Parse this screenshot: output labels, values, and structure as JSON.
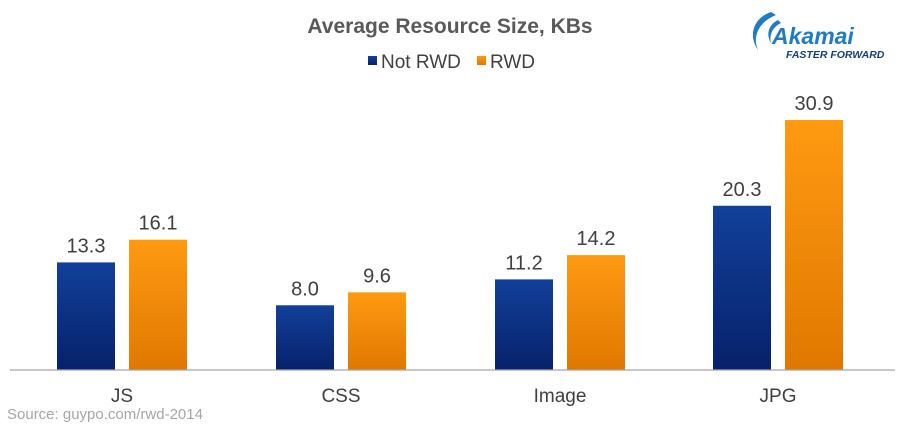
{
  "chart_data": {
    "type": "bar",
    "title": "Average Resource Size, KBs",
    "categories": [
      "JS",
      "CSS",
      "Image",
      "JPG"
    ],
    "series": [
      {
        "name": "Not RWD",
        "values": [
          13.3,
          8.0,
          11.2,
          20.3
        ],
        "labels": [
          "13.3",
          "8.0",
          "11.2",
          "20.3"
        ]
      },
      {
        "name": "RWD",
        "values": [
          16.1,
          9.6,
          14.2,
          30.9
        ],
        "labels": [
          "16.1",
          "9.6",
          "14.2",
          "30.9"
        ]
      }
    ],
    "ylim": [
      0,
      33.4
    ],
    "xlabel": "",
    "ylabel": "",
    "grid": false,
    "legend_position": "top-center",
    "colors": {
      "Not RWD": "#0b2a7a",
      "RWD": "#f08a00",
      "axis": "#a6a6a6"
    }
  },
  "source": "Source: guypo.com/rwd-2014",
  "logo": {
    "name": "Akamai",
    "tagline": "FASTER FORWARD",
    "color_name": "#1f7bc4",
    "color_tagline": "#173f7a"
  }
}
